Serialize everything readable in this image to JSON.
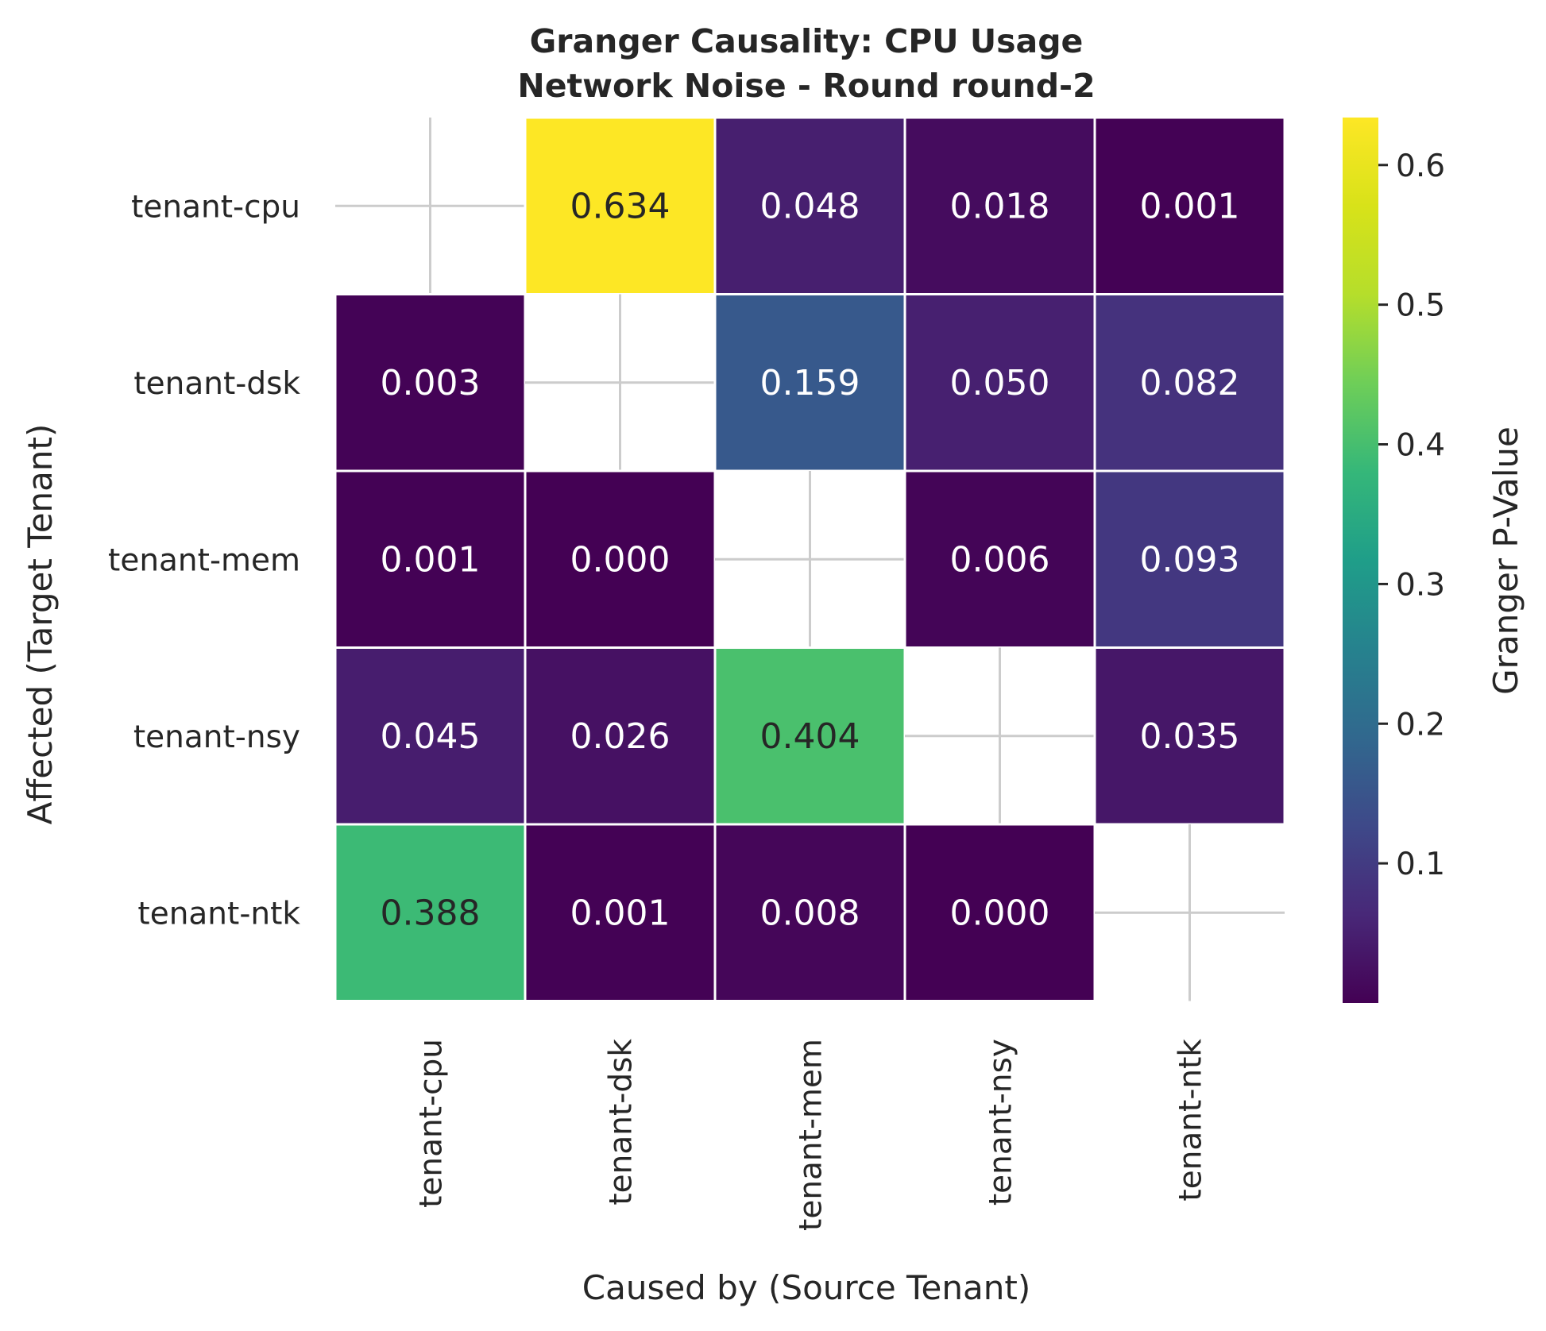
{
  "chart_data": {
    "type": "heatmap",
    "title_lines": [
      "Granger Causality: CPU Usage",
      "Network Noise - Round round-2"
    ],
    "xlabel": "Caused by (Source Tenant)",
    "ylabel": "Affected (Target Tenant)",
    "x_categories": [
      "tenant-cpu",
      "tenant-dsk",
      "tenant-mem",
      "tenant-nsy",
      "tenant-ntk"
    ],
    "y_categories": [
      "tenant-cpu",
      "tenant-dsk",
      "tenant-mem",
      "tenant-nsy",
      "tenant-ntk"
    ],
    "values": [
      [
        null,
        0.634,
        0.048,
        0.018,
        0.001
      ],
      [
        0.003,
        null,
        0.159,
        0.05,
        0.082
      ],
      [
        0.001,
        0.0,
        null,
        0.006,
        0.093
      ],
      [
        0.045,
        0.026,
        0.404,
        null,
        0.035
      ],
      [
        0.388,
        0.001,
        0.008,
        0.0,
        null
      ]
    ],
    "value_format": "3 decimals",
    "colormap": "viridis",
    "colorbar": {
      "label": "Granger P-Value",
      "range": [
        0.0,
        0.634
      ],
      "ticks": [
        "0.1",
        "0.2",
        "0.3",
        "0.4",
        "0.5",
        "0.6"
      ]
    },
    "missing_cell_marker": "cross",
    "grid": false,
    "legend": "colorbar right"
  }
}
